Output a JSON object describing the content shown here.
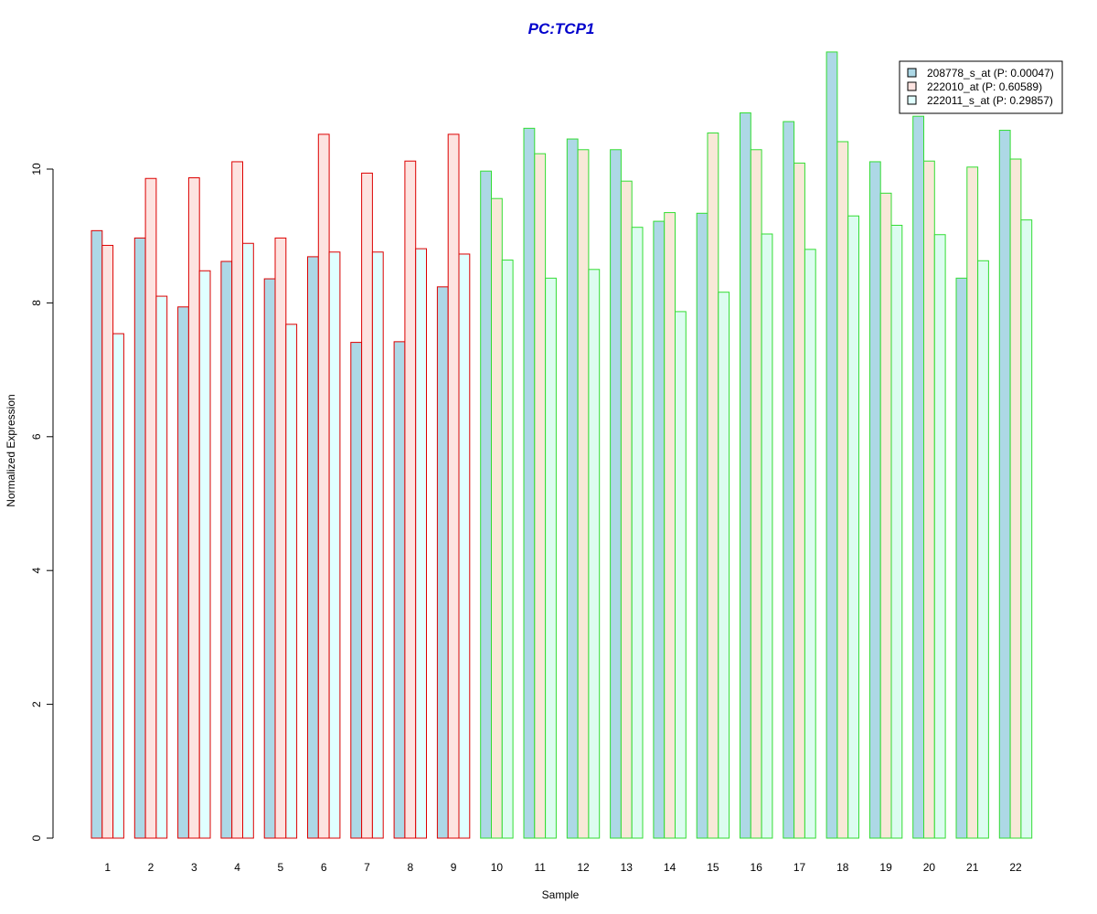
{
  "chart_data": {
    "type": "bar",
    "title": "PC:TCP1",
    "xlabel": "Sample",
    "ylabel": "Normalized Expression",
    "ylim": [
      0,
      12
    ],
    "yticks": [
      0,
      2,
      4,
      6,
      8,
      10
    ],
    "categories": [
      "1",
      "2",
      "3",
      "4",
      "5",
      "6",
      "7",
      "8",
      "9",
      "10",
      "11",
      "12",
      "13",
      "14",
      "15",
      "16",
      "17",
      "18",
      "19",
      "20",
      "21",
      "22"
    ],
    "group_border_colors": [
      "#dd0000",
      "#dd0000",
      "#dd0000",
      "#dd0000",
      "#dd0000",
      "#dd0000",
      "#dd0000",
      "#dd0000",
      "#dd0000",
      "#33dd33",
      "#33dd33",
      "#33dd33",
      "#33dd33",
      "#33dd33",
      "#33dd33",
      "#33dd33",
      "#33dd33",
      "#33dd33",
      "#33dd33",
      "#33dd33",
      "#33dd33",
      "#33dd33"
    ],
    "series": [
      {
        "name": "208778_s_at (P: 0.00047)",
        "fill": "#add8e6",
        "values": [
          9.08,
          8.97,
          7.94,
          8.62,
          8.36,
          8.69,
          7.41,
          7.42,
          8.24,
          9.97,
          10.61,
          10.45,
          10.29,
          9.22,
          9.34,
          10.84,
          10.71,
          11.75,
          10.11,
          10.79,
          8.37,
          10.58
        ]
      },
      {
        "name": "222010_at (P: 0.60589)",
        "fill": "#fde3e0",
        "alt_fill": "#f8e8d8",
        "values": [
          8.86,
          9.86,
          9.87,
          10.11,
          8.97,
          10.52,
          9.94,
          10.12,
          10.52,
          9.56,
          10.23,
          10.29,
          9.82,
          9.35,
          10.54,
          10.29,
          10.09,
          10.41,
          9.64,
          10.12,
          10.03,
          10.15
        ]
      },
      {
        "name": "222011_s_at (P: 0.29857)",
        "fill": "#e0ffff",
        "alt_fill": "#dcfcf0",
        "values": [
          7.54,
          8.1,
          8.48,
          8.89,
          7.68,
          8.76,
          8.76,
          8.81,
          8.73,
          8.64,
          8.37,
          8.5,
          9.13,
          7.87,
          8.16,
          9.03,
          8.8,
          9.3,
          9.16,
          9.02,
          8.63,
          9.24
        ]
      }
    ],
    "legend_position": "top-right",
    "grid": false
  }
}
